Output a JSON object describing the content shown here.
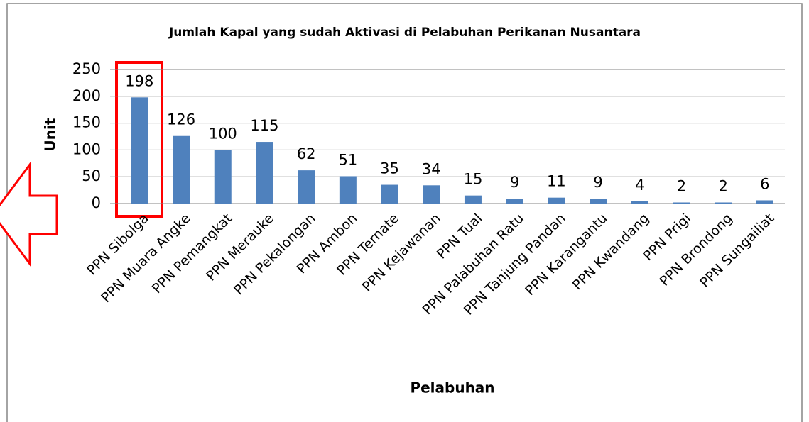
{
  "chart_data": {
    "type": "bar",
    "title": "Jumlah Kapal yang sudah Aktivasi di Pelabuhan Perikanan Nusantara",
    "x_label": "Pelabuhan",
    "y_label": "Unit",
    "categories": [
      "PPN Sibolga",
      "PPN Muara Angke",
      "PPN Pemangkat",
      "PPN Merauke",
      "PPN Pekalongan",
      "PPN Ambon",
      "PPN Ternate",
      "PPN Kejawanan",
      "PPN Tual",
      "PPN Palabuhan Ratu",
      "PPN Tanjung Pandan",
      "PPN Karangantu",
      "PPN Kwandang",
      "PPN Prigi",
      "PPN Brondong",
      "PPN Sungailiat"
    ],
    "values": [
      198,
      126,
      100,
      115,
      62,
      51,
      35,
      34,
      15,
      9,
      11,
      9,
      4,
      2,
      2,
      6
    ],
    "color": "#4f81bd",
    "ylim": [
      0,
      250
    ],
    "yticks": [
      0,
      50,
      100,
      150,
      200,
      250
    ],
    "grid": true
  }
}
